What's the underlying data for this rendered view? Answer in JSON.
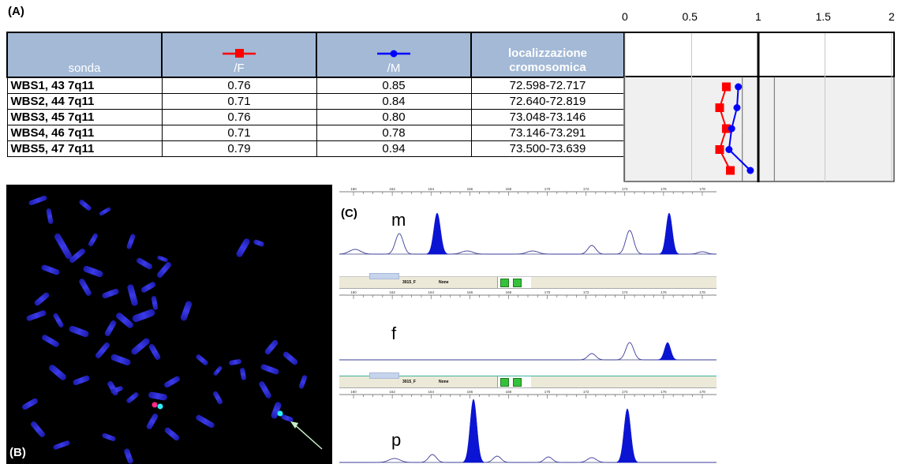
{
  "panel_labels": {
    "a": "(A)",
    "b": "(B)",
    "c": "(C)"
  },
  "colors": {
    "father": "#ff0000",
    "mother": "#0000ff",
    "header_bg": "#a3b9d6",
    "trace_fill": "#0a14d2"
  },
  "table": {
    "headers": {
      "probe": "sonda",
      "father": "/F",
      "mother": "/M",
      "location": "localizzazione cromosomica"
    },
    "rows": [
      {
        "probe": "WBS1, 43 7q11",
        "f": "0.76",
        "m": "0.85",
        "loc": "72.598-72.717"
      },
      {
        "probe": "WBS2, 44 7q11",
        "f": "0.71",
        "m": "0.84",
        "loc": "72.640-72.819"
      },
      {
        "probe": "WBS3, 45 7q11",
        "f": "0.76",
        "m": "0.80",
        "loc": "73.048-73.146"
      },
      {
        "probe": "WBS4, 46 7q11",
        "f": "0.71",
        "m": "0.78",
        "loc": "73.146-73.291"
      },
      {
        "probe": "WBS5, 47 7q11",
        "f": "0.79",
        "m": "0.94",
        "loc": "73.500-73.639"
      }
    ]
  },
  "chart_data": {
    "type": "line",
    "x_ticks": [
      "0",
      "0.5",
      "1",
      "1.5",
      "2"
    ],
    "xlim": [
      0,
      2
    ],
    "reference_x": 1,
    "categories": [
      "WBS1, 43 7q11",
      "WBS2, 44 7q11",
      "WBS3, 45 7q11",
      "WBS4, 46 7q11",
      "WBS5, 47 7q11"
    ],
    "series": [
      {
        "name": "/F",
        "values": [
          0.76,
          0.71,
          0.76,
          0.71,
          0.79
        ],
        "marker": "square"
      },
      {
        "name": "/M",
        "values": [
          0.85,
          0.84,
          0.8,
          0.78,
          0.94
        ],
        "marker": "circle"
      }
    ]
  },
  "electropherogram": {
    "ruler_ticks": [
      "160",
      "162",
      "164",
      "166",
      "168",
      "170",
      "172",
      "174",
      "176",
      "178"
    ],
    "band_labels": [
      "3015_F",
      "None"
    ],
    "trace_labels": {
      "m": "m",
      "f": "f",
      "p": "p"
    }
  }
}
